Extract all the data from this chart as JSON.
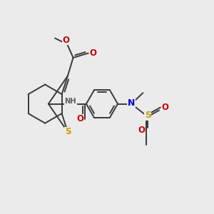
{
  "background_color": "#ebebeb",
  "bond_color": "#3a3a3a",
  "bond_width": 1.4,
  "atom_colors": {
    "S": "#c8a000",
    "O": "#cc0000",
    "N": "#0000cc",
    "H": "#606060"
  },
  "fig_width": 3.0,
  "fig_height": 3.0,
  "dpi": 100
}
